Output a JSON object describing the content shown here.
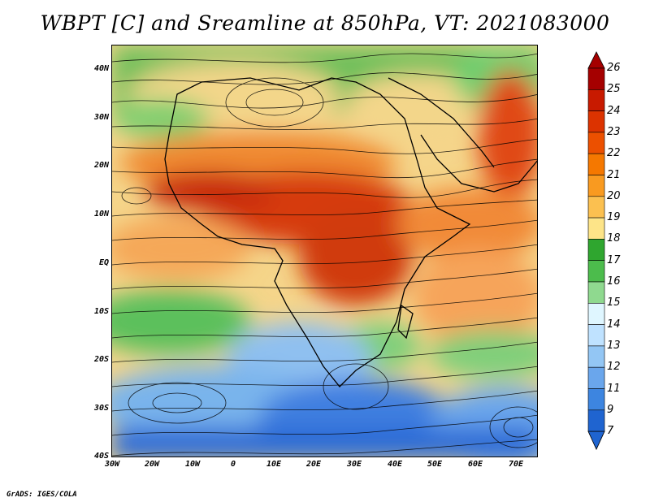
{
  "title": "WBPT [C] and Sreamline at 850hPa, VT: 2021083000",
  "footer": "GrADS: IGES/COLA",
  "lat_labels": [
    "40N",
    "30N",
    "20N",
    "10N",
    "EQ",
    "10S",
    "20S",
    "30S",
    "40S"
  ],
  "lon_labels": [
    "30W",
    "20W",
    "10W",
    "0",
    "10E",
    "20E",
    "30E",
    "40E",
    "50E",
    "60E",
    "70E"
  ],
  "colorbar": {
    "labels": [
      "26",
      "25",
      "24",
      "23",
      "22",
      "21",
      "20",
      "19",
      "18",
      "17",
      "16",
      "15",
      "14",
      "13",
      "12",
      "11",
      "9",
      "7"
    ],
    "colors": [
      "#a50000",
      "#c81a00",
      "#dc3300",
      "#ec5000",
      "#f57800",
      "#f99a20",
      "#fbc050",
      "#fde488",
      "#2fa62f",
      "#4cbc4c",
      "#8fd98f",
      "#dff6ff",
      "#bfe2ff",
      "#93c6f4",
      "#6aa6ec",
      "#3d85e0",
      "#1f64d0"
    ],
    "arrow_top_color": "#a50000",
    "arrow_bottom_color": "#1f64d0"
  }
}
